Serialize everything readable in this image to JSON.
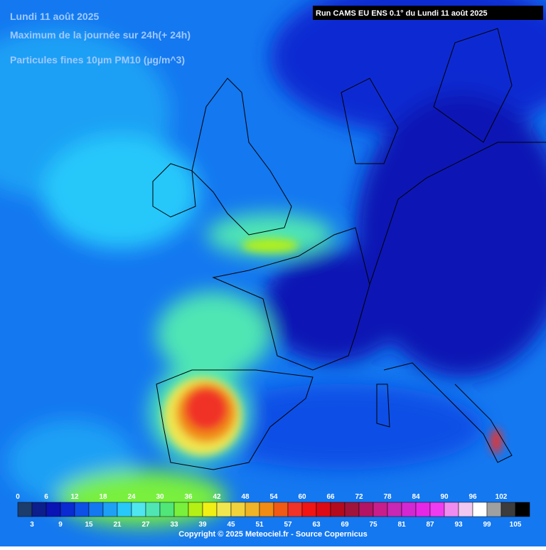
{
  "header": {
    "date": "Lundi 11 août 2025",
    "subtitle": "Maximum de la journée sur 24h(+ 24h)",
    "variable": "Particules fines 10µm PM10 (µg/m^3)",
    "run": "Run CAMS EU ENS 0.1° du Lundi 11 août 2025"
  },
  "legend": {
    "ticks": [
      0,
      3,
      6,
      9,
      12,
      15,
      18,
      21,
      24,
      27,
      30,
      33,
      36,
      39,
      42,
      45,
      48,
      51,
      54,
      57,
      60,
      63,
      66,
      69,
      72,
      75,
      78,
      81,
      84,
      87,
      90,
      93,
      96,
      99,
      102,
      105
    ],
    "colors": [
      "#1c3c6c",
      "#0c1e8c",
      "#0a14b4",
      "#0a2ad2",
      "#0c50e6",
      "#1478f0",
      "#1ea0f5",
      "#28c8fa",
      "#50e6f0",
      "#50e6b4",
      "#50e678",
      "#78f03c",
      "#b4f014",
      "#f0f014",
      "#f0e650",
      "#f0d23c",
      "#f0b428",
      "#f08c14",
      "#f05a14",
      "#f03228",
      "#f01414",
      "#dc0a14",
      "#b40a1e",
      "#a0143c",
      "#b41464",
      "#c81e8c",
      "#c828b4",
      "#d228d2",
      "#e628e6",
      "#f03cf0",
      "#f08cf0",
      "#f0c8f0",
      "#ffffff",
      "#a0a0a0",
      "#3c3c3c",
      "#000000"
    ]
  },
  "footer": {
    "copyright": "Copyright © 2025 Meteociel.fr - Source Copernicus"
  }
}
